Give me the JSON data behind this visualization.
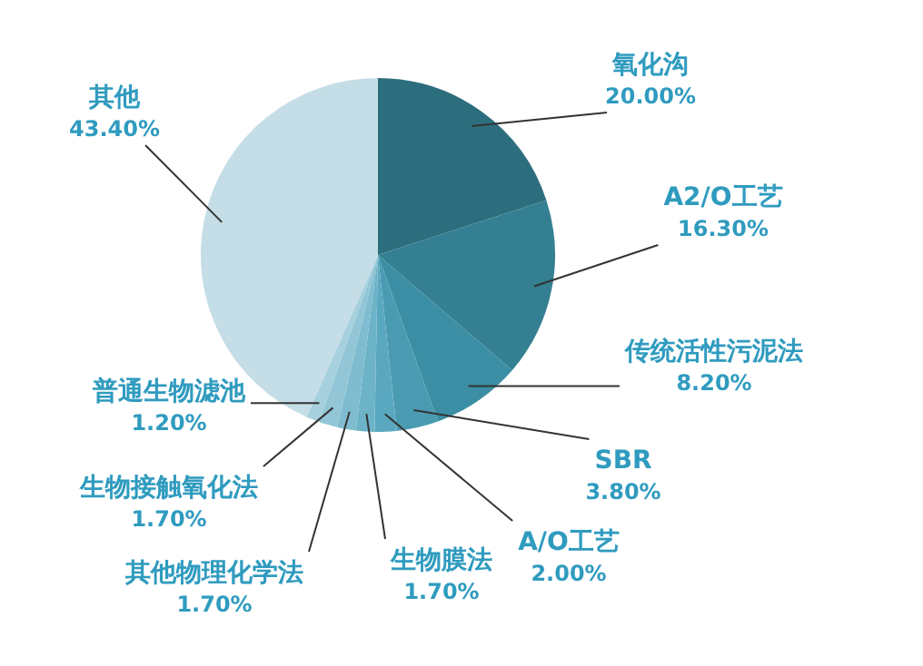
{
  "chart_data": {
    "type": "pie",
    "categories": [
      "氧化沟",
      "A2/O工艺",
      "传统活性污泥法",
      "SBR",
      "A/O工艺",
      "生物膜法",
      "其他物理化学法",
      "生物接触氧化法",
      "普通生物滤池",
      "其他"
    ],
    "values": [
      20.0,
      16.3,
      8.2,
      3.8,
      2.0,
      1.7,
      1.7,
      1.7,
      1.2,
      43.4
    ],
    "value_labels": [
      "20.00%",
      "16.30%",
      "8.20%",
      "3.80%",
      "2.00%",
      "1.70%",
      "1.70%",
      "1.70%",
      "1.20%",
      "43.40%"
    ],
    "colors": [
      "#2d6e7e",
      "#347f92",
      "#3b8ea3",
      "#4a9bb2",
      "#5aa8c0",
      "#6cb3c8",
      "#7fbcd0",
      "#92c6d6",
      "#a6d0dd",
      "#c4dde6"
    ],
    "legend": false
  }
}
